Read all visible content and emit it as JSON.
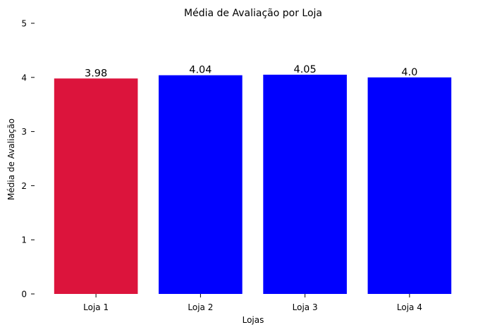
{
  "chart_data": {
    "type": "bar",
    "title": "Média de Avaliação por Loja",
    "xlabel": "Lojas",
    "ylabel": "Média de Avaliação",
    "categories": [
      "Loja 1",
      "Loja 2",
      "Loja 3",
      "Loja 4"
    ],
    "values": [
      3.98,
      4.04,
      4.05,
      4.0
    ],
    "value_labels": [
      "3.98",
      "4.04",
      "4.05",
      "4.0"
    ],
    "bar_colors": [
      "#dc143c",
      "#0000ff",
      "#0000ff",
      "#0000ff"
    ],
    "ylim": [
      0,
      5
    ],
    "yticks": [
      0,
      1,
      2,
      3,
      4,
      5
    ],
    "ytick_labels": [
      "0",
      "1",
      "2",
      "3",
      "4",
      "5"
    ],
    "grid": false,
    "legend": "none"
  }
}
